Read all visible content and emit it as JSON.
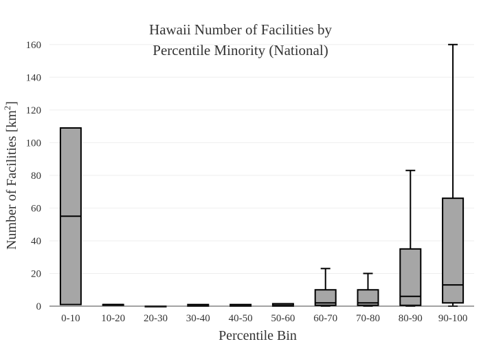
{
  "chart_data": {
    "type": "box",
    "title_lines": [
      "Hawaii Number of Facilities by",
      "Percentile Minority (National)"
    ],
    "xlabel": "Percentile Bin",
    "ylabel_main": "Number of Facilities  [km",
    "ylabel_sup": "2",
    "ylabel_end": "]",
    "ylim": [
      0,
      162
    ],
    "yticks": [
      0,
      20,
      40,
      60,
      80,
      100,
      120,
      140,
      160
    ],
    "grid": true,
    "colors": {
      "box_fill": "#a6a6a6",
      "stroke": "#000000"
    },
    "categories": [
      "0-10",
      "10-20",
      "20-30",
      "30-40",
      "40-50",
      "50-60",
      "60-70",
      "70-80",
      "80-90",
      "90-100"
    ],
    "boxes": [
      {
        "min": 1,
        "q1": 1,
        "median": 55,
        "q3": 109,
        "max": 109
      },
      {
        "min": 1,
        "q1": 1,
        "median": 1,
        "q3": 1,
        "max": 1
      },
      {
        "min": 0,
        "q1": 0,
        "median": 0,
        "q3": 0,
        "max": 0
      },
      {
        "min": 0,
        "q1": 0,
        "median": 0.5,
        "q3": 1,
        "max": 1
      },
      {
        "min": 0,
        "q1": 0,
        "median": 0.5,
        "q3": 1,
        "max": 1
      },
      {
        "min": 0,
        "q1": 0,
        "median": 0.5,
        "q3": 1.5,
        "max": 1.5
      },
      {
        "min": 0,
        "q1": 0.5,
        "median": 2,
        "q3": 10,
        "max": 23
      },
      {
        "min": 0,
        "q1": 0.5,
        "median": 2,
        "q3": 10,
        "max": 20
      },
      {
        "min": 0,
        "q1": 0.5,
        "median": 6,
        "q3": 35,
        "max": 83
      },
      {
        "min": 0,
        "q1": 2,
        "median": 13,
        "q3": 66,
        "max": 160
      }
    ]
  }
}
